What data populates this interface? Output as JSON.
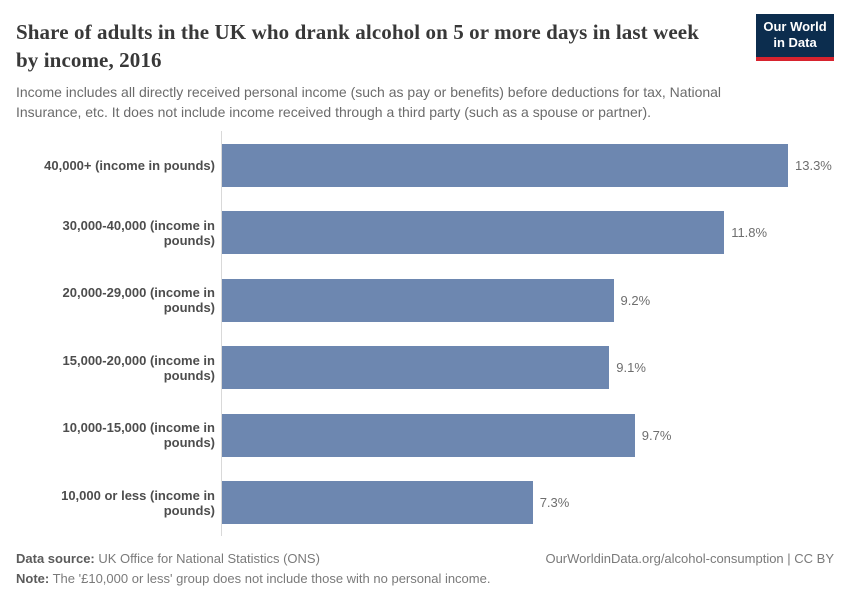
{
  "header": {
    "title": "Share of adults in the UK who drank alcohol on 5 or more days in last week by income, 2016",
    "subtitle": "Income includes all directly received personal income (such as pay or benefits) before deductions for tax, National Insurance, etc. It does not include income received through a third party (such as a spouse or partner).",
    "logo": {
      "line1": "Our World",
      "line2": "in Data"
    }
  },
  "chart_data": {
    "type": "bar",
    "orientation": "horizontal",
    "title": "Share of adults in the UK who drank alcohol on 5 or more days in last week by income, 2016",
    "categories": [
      "40,000+ (income in pounds)",
      "30,000-40,000 (income in pounds)",
      "20,000-29,000 (income in pounds)",
      "15,000-20,000 (income in pounds)",
      "10,000-15,000 (income in pounds)",
      "10,000 or less (income in pounds)"
    ],
    "values": [
      13.3,
      11.8,
      9.2,
      9.1,
      9.7,
      7.3
    ],
    "value_labels": [
      "13.3%",
      "11.8%",
      "9.2%",
      "9.1%",
      "9.7%",
      "7.3%"
    ],
    "unit": "%",
    "xlim": [
      0,
      13.3
    ],
    "grid": false,
    "bar_color": "#6d87b0",
    "axis_line_color": "#d9d9d9"
  },
  "footer": {
    "source_label": "Data source:",
    "source_text": "UK Office for National Statistics (ONS)",
    "note_label": "Note:",
    "note_text": "The '£10,000 or less' group does not include those with no personal income.",
    "link": "OurWorldinData.org/alcohol-consumption | CC BY"
  },
  "colors": {
    "bar": "#6d87b0",
    "logo_navy": "#0c2d4e",
    "logo_red": "#d7232e",
    "title_text": "#383838",
    "subtitle_text": "#6b6b6b"
  }
}
